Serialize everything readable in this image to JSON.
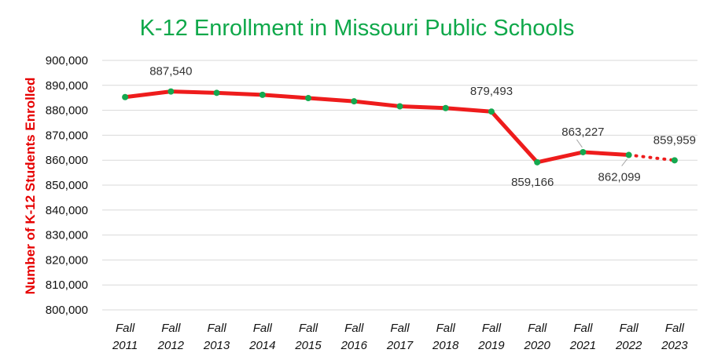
{
  "chart_data": {
    "type": "line",
    "title": "K-12 Enrollment in Missouri Public Schools",
    "xlabel": "",
    "ylabel": "Number of K-12 Students Enrolled",
    "categories": [
      [
        "Fall",
        "2011"
      ],
      [
        "Fall",
        "2012"
      ],
      [
        "Fall",
        "2013"
      ],
      [
        "Fall",
        "2014"
      ],
      [
        "Fall",
        "2015"
      ],
      [
        "Fall",
        "2016"
      ],
      [
        "Fall",
        "2017"
      ],
      [
        "Fall",
        "2018"
      ],
      [
        "Fall",
        "2019"
      ],
      [
        "Fall",
        "2020"
      ],
      [
        "Fall",
        "2021"
      ],
      [
        "Fall",
        "2022"
      ],
      [
        "Fall",
        "2023"
      ]
    ],
    "values": [
      885300,
      887540,
      887000,
      886200,
      884900,
      883600,
      881600,
      880900,
      879493,
      859166,
      863227,
      862099,
      859959
    ],
    "dotted_from_index": 11,
    "ylim": [
      800000,
      900000
    ],
    "yticks": [
      800000,
      810000,
      820000,
      830000,
      840000,
      850000,
      860000,
      870000,
      880000,
      890000,
      900000
    ],
    "ytick_labels": [
      "800,000",
      "810,000",
      "820,000",
      "830,000",
      "840,000",
      "850,000",
      "860,000",
      "870,000",
      "880,000",
      "890,000",
      "900,000"
    ],
    "data_labels": [
      {
        "index": 1,
        "text": "887,540",
        "placement": "above"
      },
      {
        "index": 8,
        "text": "879,493",
        "placement": "above"
      },
      {
        "index": 9,
        "text": "859,166",
        "placement": "below"
      },
      {
        "index": 10,
        "text": "863,227",
        "placement": "above-leader"
      },
      {
        "index": 11,
        "text": "862,099",
        "placement": "below-leader"
      },
      {
        "index": 12,
        "text": "859,959",
        "placement": "above"
      }
    ],
    "grid": true,
    "colors": {
      "line": "#ee1c1c",
      "marker": "#15a84f",
      "title": "#0fa84a",
      "ylabel": "#e60000"
    }
  }
}
